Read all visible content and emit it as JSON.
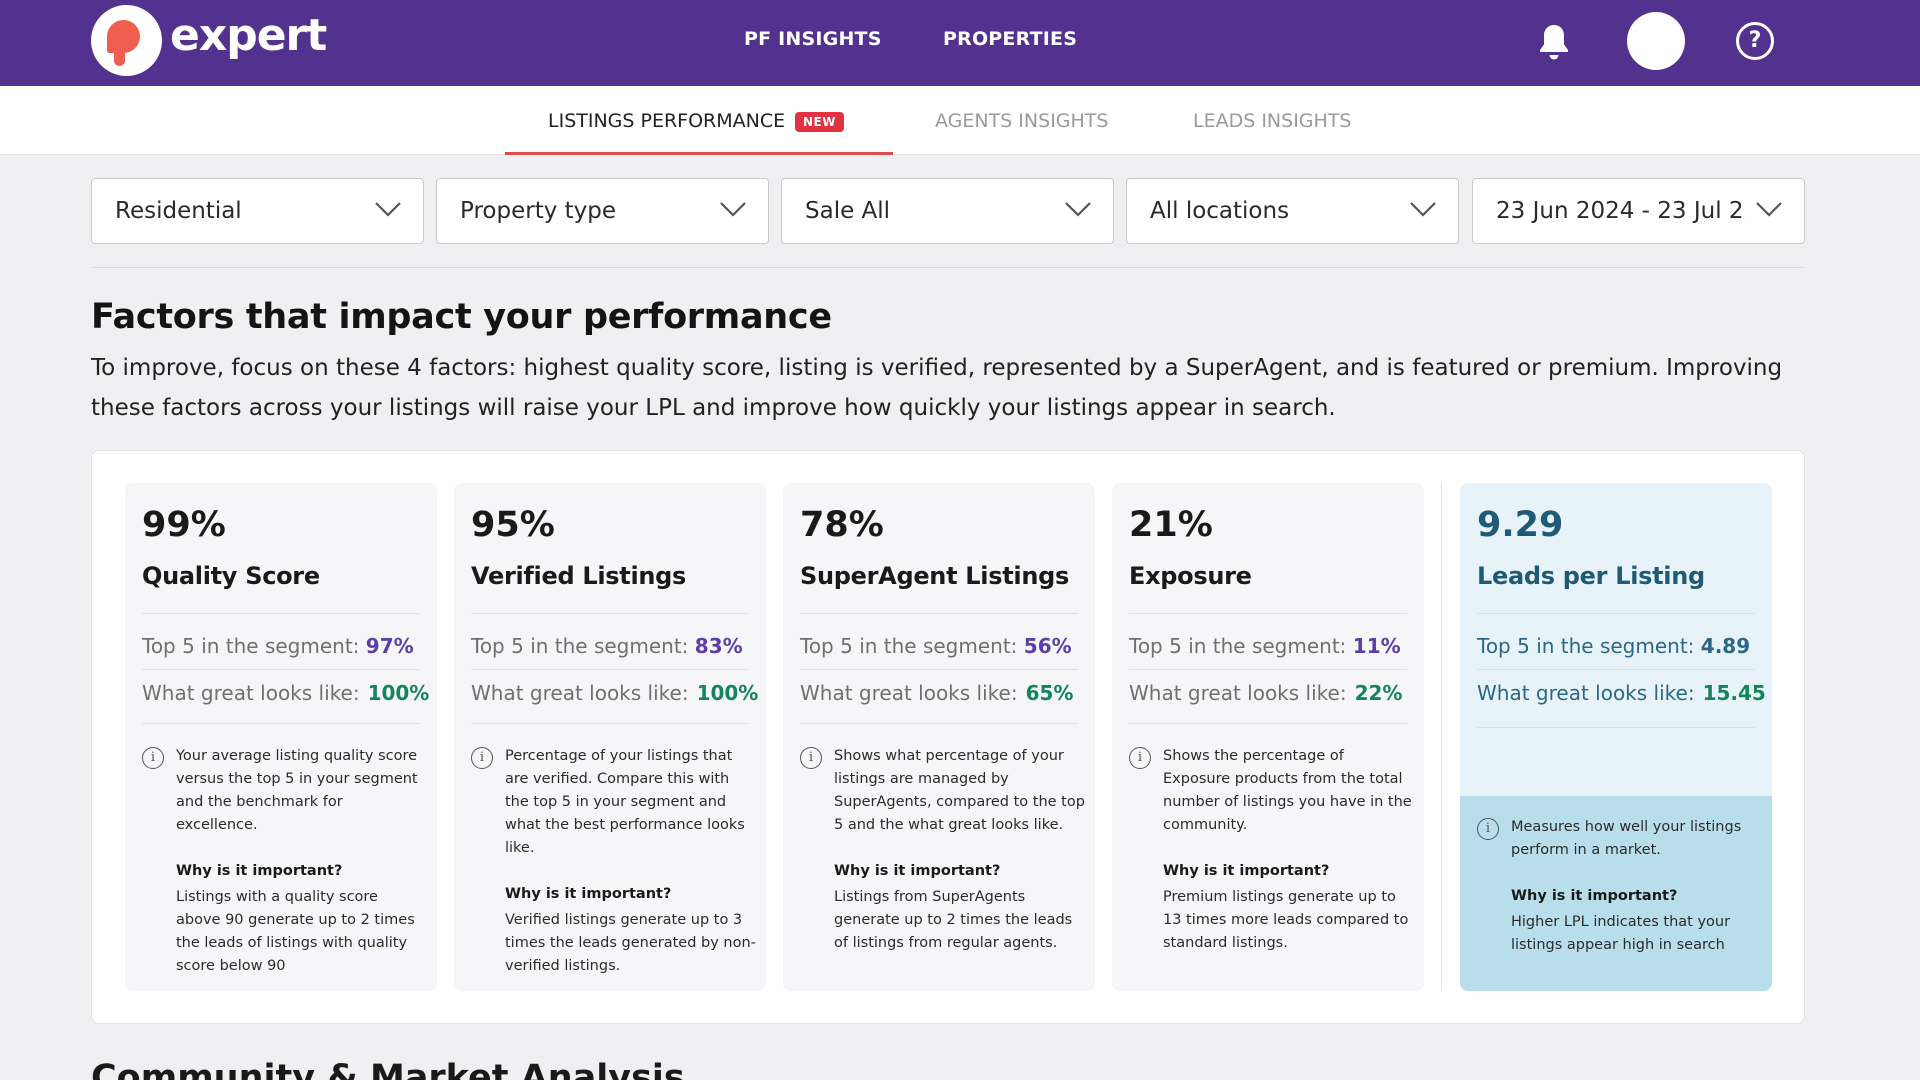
{
  "brand": {
    "name": "expert"
  },
  "topnav": {
    "pf_insights": "PF INSIGHTS",
    "properties": "PROPERTIES",
    "help_symbol": "?"
  },
  "subnav": {
    "tabs": [
      {
        "label": "LISTINGS PERFORMANCE",
        "badge": "NEW",
        "active": true
      },
      {
        "label": "AGENTS INSIGHTS",
        "active": false
      },
      {
        "label": "LEADS INSIGHTS",
        "active": false
      }
    ]
  },
  "filters": {
    "category": "Residential",
    "property_type": "Property type",
    "purpose": "Sale All",
    "location": "All locations",
    "date_range": "23 Jun 2024 - 23 Jul 2..."
  },
  "factors": {
    "title": "Factors that impact your performance",
    "description": "To improve, focus on these 4 factors: highest quality score, listing is verified, represented by a SuperAgent, and is featured or premium. Improving these factors across your listings will raise your LPL and improve how quickly your listings appear in search.",
    "labels": {
      "top5": "Top 5 in the segment:",
      "great": "What great looks like:",
      "why": "Why is it important?",
      "info_icon": "i"
    },
    "cards": [
      {
        "value": "99%",
        "name": "Quality Score",
        "top5": "97%",
        "great": "100%",
        "info": "Your average listing quality score versus the top 5 in your segment and the benchmark for excellence.",
        "why": "Listings with a quality score above 90 generate up to 2 times the leads of listings with quality score below 90"
      },
      {
        "value": "95%",
        "name": "Verified Listings",
        "top5": "83%",
        "great": "100%",
        "info": "Percentage of your listings that are verified. Compare this with the top 5 in your segment and what the best performance looks like.",
        "why": "Verified listings generate up to 3 times the leads generated by non-verified listings."
      },
      {
        "value": "78%",
        "name": "SuperAgent Listings",
        "top5": "56%",
        "great": "65%",
        "info": "Shows what percentage of your listings are managed by SuperAgents, compared to the top 5 and the what great looks like.",
        "why": "Listings from SuperAgents generate up to 2 times the leads of listings from regular agents."
      },
      {
        "value": "21%",
        "name": "Exposure",
        "top5": "11%",
        "great": "22%",
        "info": "Shows the percentage of Exposure products from the total number of listings you have in the community.",
        "why": "Premium listings generate up to 13 times more leads compared to standard listings."
      },
      {
        "value": "9.29",
        "name": "Leads per Listing",
        "top5": "4.89",
        "great": "15.45",
        "info": "Measures how well your listings perform in a market.",
        "why": "Higher LPL indicates that your listings appear high in search"
      }
    ]
  },
  "next_section": {
    "title": "Community & Market Analysis"
  },
  "colors": {
    "header": "#52328e",
    "accent_red": "#e0323f",
    "purple_value": "#5b3fa8",
    "green_value": "#13855a",
    "lpl_bg": "#e8f3f9",
    "lpl_info_bg": "#b9deeb"
  }
}
